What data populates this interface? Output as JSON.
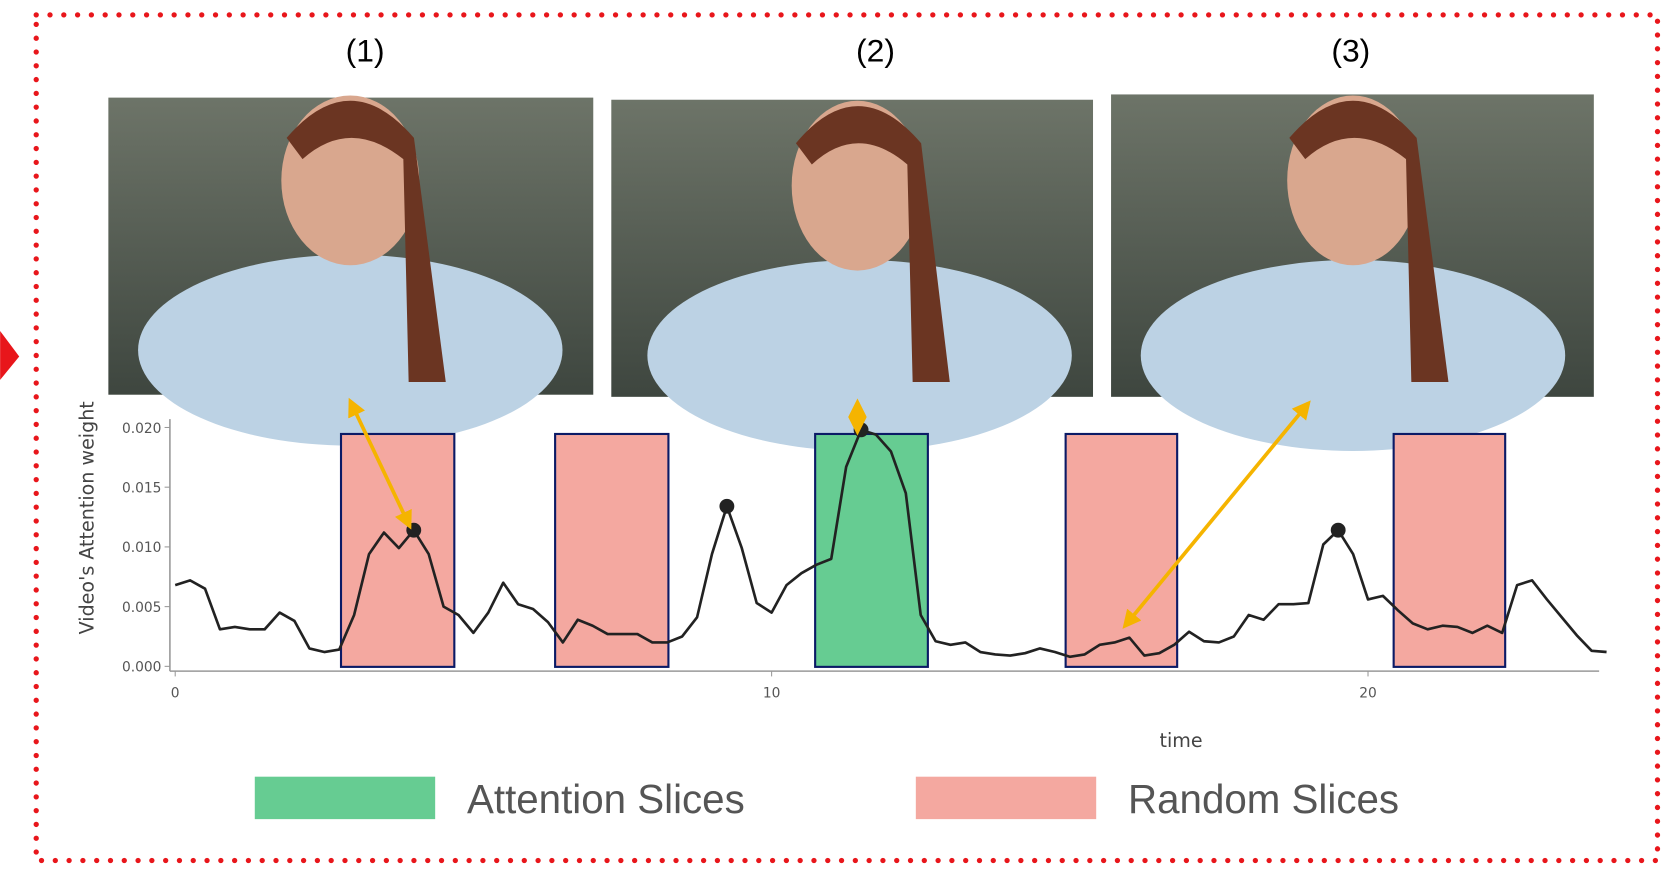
{
  "chart_data": {
    "type": "line",
    "panels": [
      "(1)",
      "(2)",
      "(3)"
    ],
    "y_label": "Video's Attention weight",
    "x_label": "time",
    "line_color": "#222222",
    "xlim": [
      0,
      24
    ],
    "ylim": [
      -0.0004,
      0.0207
    ],
    "xticks": [
      0,
      10,
      20
    ],
    "yticks": [
      {
        "value": 0,
        "label": "0.000"
      },
      0.005,
      {
        "value": 0.01,
        "label": "0.010"
      },
      0.015,
      {
        "value": 0.02,
        "label": "0.020"
      }
    ],
    "x": [
      0,
      0.25,
      0.5,
      0.75,
      1,
      1.25,
      1.5,
      1.75,
      2,
      2.25,
      2.5,
      2.75,
      3,
      3.25,
      3.5,
      3.75,
      4,
      4.25,
      4.5,
      4.75,
      5,
      5.25,
      5.5,
      5.75,
      6,
      6.25,
      6.5,
      6.75,
      7,
      7.25,
      7.5,
      7.75,
      8,
      8.25,
      8.5,
      8.75,
      9,
      9.25,
      9.5,
      9.75,
      10,
      10.25,
      10.5,
      10.75,
      11,
      11.25,
      11.5,
      11.75,
      12,
      12.25,
      12.5,
      12.75,
      13,
      13.25,
      13.5,
      13.75,
      14,
      14.25,
      14.5,
      14.75,
      15,
      15.25,
      15.5,
      15.75,
      16,
      16.25,
      16.5,
      16.75,
      17,
      17.25,
      17.5,
      17.75,
      18,
      18.25,
      18.5,
      18.75,
      19,
      19.25,
      19.5,
      19.75,
      20,
      20.25,
      20.5,
      20.75,
      21,
      21.25,
      21.5,
      21.75,
      22,
      22.25,
      22.5,
      22.75,
      23,
      23.25,
      23.5,
      23.75,
      24
    ],
    "values": [
      0.0068,
      0.0072,
      0.0065,
      0.0031,
      0.0033,
      0.0031,
      0.0031,
      0.0045,
      0.0038,
      0.0015,
      0.0012,
      0.0014,
      0.0043,
      0.0094,
      0.0112,
      0.0099,
      0.0114,
      0.0094,
      0.005,
      0.0043,
      0.0028,
      0.0045,
      0.007,
      0.0052,
      0.0048,
      0.0037,
      0.002,
      0.0039,
      0.0034,
      0.0027,
      0.0027,
      0.0027,
      0.002,
      0.002,
      0.0025,
      0.0041,
      0.0094,
      0.0134,
      0.0099,
      0.0053,
      0.0045,
      0.0068,
      0.0078,
      0.0085,
      0.009,
      0.0167,
      0.0198,
      0.0194,
      0.018,
      0.0145,
      0.0043,
      0.0021,
      0.0018,
      0.002,
      0.0012,
      0.001,
      0.0009,
      0.0011,
      0.0015,
      0.0012,
      0.0008,
      0.001,
      0.0018,
      0.002,
      0.0024,
      0.0009,
      0.0011,
      0.0018,
      0.0029,
      0.0021,
      0.002,
      0.0025,
      0.0043,
      0.0039,
      0.0052,
      0.0052,
      0.0053,
      0.0102,
      0.0114,
      0.0094,
      0.0056,
      0.0059,
      0.0047,
      0.0036,
      0.0031,
      0.0034,
      0.0033,
      0.0028,
      0.0034,
      0.0028,
      0.0068,
      0.0072,
      0.0056,
      0.0041,
      0.0026,
      0.0013,
      0.0012
    ],
    "highlights": {
      "x": [
        4,
        9.25,
        11.5,
        19.5
      ],
      "values": [
        0.0114,
        0.0134,
        0.0198,
        0.0114
      ]
    },
    "slice_groups": [
      {
        "name": "Attention Slices",
        "color": "#66cc92",
        "ranges": [
          [
            10.73,
            12.62
          ]
        ]
      },
      {
        "name": "Random Slices",
        "color": "#f4a8a0",
        "ranges": [
          [
            2.78,
            4.68
          ],
          [
            6.37,
            8.27
          ],
          [
            14.93,
            16.8
          ],
          [
            20.43,
            22.3
          ]
        ]
      }
    ]
  }
}
